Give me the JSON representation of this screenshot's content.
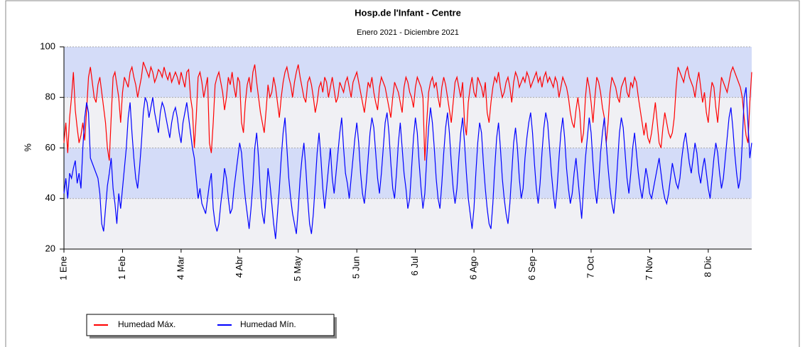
{
  "chart_data": {
    "type": "line",
    "title": "Hosp.de l'Infant - Centre",
    "subtitle": "Enero 2021 - Diciembre 2021",
    "y_label": "%",
    "categories": [
      "1 Ene",
      null,
      null,
      null,
      null,
      null,
      null,
      null,
      null,
      null,
      null,
      null,
      null,
      null,
      null,
      null,
      null,
      null,
      null,
      null,
      null,
      null,
      null,
      null,
      null,
      null,
      null,
      null,
      null,
      null,
      null,
      "1 Feb",
      null,
      null,
      null,
      null,
      null,
      null,
      null,
      null,
      null,
      null,
      null,
      null,
      null,
      null,
      null,
      null,
      null,
      null,
      null,
      null,
      null,
      null,
      null,
      null,
      null,
      null,
      null,
      null,
      null,
      null,
      "4 Mar",
      null,
      null,
      null,
      null,
      null,
      null,
      null,
      null,
      null,
      null,
      null,
      null,
      null,
      null,
      null,
      null,
      null,
      null,
      null,
      null,
      null,
      null,
      null,
      null,
      null,
      null,
      null,
      null,
      null,
      null,
      "4 Abr",
      null,
      null,
      null,
      null,
      null,
      null,
      null,
      null,
      null,
      null,
      null,
      null,
      null,
      null,
      null,
      null,
      null,
      null,
      null,
      null,
      null,
      null,
      null,
      null,
      null,
      null,
      null,
      null,
      null,
      null,
      "5 May",
      null,
      null,
      null,
      null,
      null,
      null,
      null,
      null,
      null,
      null,
      null,
      null,
      null,
      null,
      null,
      null,
      null,
      null,
      null,
      null,
      null,
      null,
      null,
      null,
      null,
      null,
      null,
      null,
      null,
      null,
      "5 Jun",
      null,
      null,
      null,
      null,
      null,
      null,
      null,
      null,
      null,
      null,
      null,
      null,
      null,
      null,
      null,
      null,
      null,
      null,
      null,
      null,
      null,
      null,
      null,
      null,
      null,
      null,
      null,
      null,
      null,
      null,
      "6 Jul",
      null,
      null,
      null,
      null,
      null,
      null,
      null,
      null,
      null,
      null,
      null,
      null,
      null,
      null,
      null,
      null,
      null,
      null,
      null,
      null,
      null,
      null,
      null,
      null,
      null,
      null,
      null,
      null,
      null,
      null,
      "6 Ago",
      null,
      null,
      null,
      null,
      null,
      null,
      null,
      null,
      null,
      null,
      null,
      null,
      null,
      null,
      null,
      null,
      null,
      null,
      null,
      null,
      null,
      null,
      null,
      null,
      null,
      null,
      null,
      null,
      null,
      null,
      "6 Sep",
      null,
      null,
      null,
      null,
      null,
      null,
      null,
      null,
      null,
      null,
      null,
      null,
      null,
      null,
      null,
      null,
      null,
      null,
      null,
      null,
      null,
      null,
      null,
      null,
      null,
      null,
      null,
      null,
      null,
      null,
      "7 Oct",
      null,
      null,
      null,
      null,
      null,
      null,
      null,
      null,
      null,
      null,
      null,
      null,
      null,
      null,
      null,
      null,
      null,
      null,
      null,
      null,
      null,
      null,
      null,
      null,
      null,
      null,
      null,
      null,
      null,
      null,
      "7 Nov",
      null,
      null,
      null,
      null,
      null,
      null,
      null,
      null,
      null,
      null,
      null,
      null,
      null,
      null,
      null,
      null,
      null,
      null,
      null,
      null,
      null,
      null,
      null,
      null,
      null,
      null,
      null,
      null,
      null,
      null,
      "8 Dic",
      null,
      null,
      null,
      null,
      null,
      null,
      null,
      null,
      null,
      null,
      null,
      null,
      null,
      null,
      null,
      null,
      null,
      null,
      null,
      null,
      null,
      null,
      null
    ],
    "series": [
      {
        "name": "Humedad Máx.",
        "color": "#ff0000",
        "values": [
          62,
          70,
          58,
          72,
          80,
          90,
          75,
          68,
          62,
          65,
          70,
          63,
          75,
          88,
          92,
          86,
          80,
          78,
          85,
          88,
          82,
          76,
          70,
          60,
          55,
          72,
          88,
          90,
          85,
          80,
          70,
          82,
          88,
          86,
          84,
          90,
          92,
          88,
          85,
          80,
          84,
          88,
          94,
          92,
          90,
          88,
          92,
          90,
          86,
          88,
          91,
          90,
          88,
          92,
          89,
          87,
          90,
          86,
          88,
          90,
          88,
          85,
          90,
          87,
          84,
          90,
          91,
          80,
          75,
          60,
          72,
          88,
          90,
          86,
          80,
          84,
          88,
          62,
          58,
          70,
          85,
          88,
          90,
          86,
          82,
          75,
          80,
          88,
          85,
          90,
          84,
          80,
          88,
          86,
          70,
          66,
          78,
          85,
          88,
          82,
          90,
          93,
          86,
          80,
          74,
          70,
          66,
          75,
          85,
          80,
          82,
          88,
          84,
          78,
          72,
          80,
          86,
          90,
          92,
          88,
          85,
          80,
          86,
          90,
          93,
          88,
          84,
          80,
          78,
          86,
          88,
          85,
          80,
          74,
          78,
          84,
          86,
          82,
          88,
          86,
          80,
          84,
          88,
          83,
          78,
          80,
          86,
          84,
          82,
          86,
          88,
          84,
          80,
          86,
          88,
          90,
          86,
          82,
          78,
          74,
          80,
          86,
          84,
          88,
          82,
          78,
          75,
          84,
          88,
          86,
          84,
          80,
          76,
          72,
          80,
          86,
          84,
          82,
          78,
          74,
          84,
          88,
          86,
          82,
          80,
          76,
          84,
          88,
          86,
          84,
          80,
          55,
          70,
          82,
          86,
          88,
          84,
          86,
          80,
          76,
          84,
          88,
          85,
          80,
          75,
          70,
          78,
          86,
          88,
          84,
          80,
          86,
          70,
          65,
          78,
          84,
          88,
          82,
          80,
          88,
          86,
          84,
          80,
          86,
          74,
          70,
          78,
          84,
          88,
          86,
          90,
          84,
          80,
          82,
          86,
          88,
          84,
          78,
          86,
          90,
          88,
          84,
          86,
          88,
          86,
          90,
          88,
          84,
          86,
          88,
          90,
          86,
          88,
          84,
          88,
          90,
          86,
          88,
          86,
          84,
          88,
          86,
          80,
          84,
          88,
          86,
          84,
          80,
          74,
          70,
          68,
          75,
          80,
          74,
          62,
          66,
          80,
          88,
          84,
          78,
          70,
          80,
          88,
          86,
          82,
          76,
          72,
          62,
          70,
          82,
          88,
          86,
          84,
          80,
          78,
          84,
          86,
          88,
          82,
          80,
          86,
          84,
          88,
          86,
          80,
          75,
          70,
          65,
          70,
          64,
          62,
          66,
          72,
          78,
          70,
          62,
          60,
          68,
          74,
          70,
          66,
          64,
          66,
          72,
          84,
          92,
          90,
          88,
          86,
          90,
          92,
          88,
          86,
          84,
          80,
          86,
          90,
          84,
          78,
          82,
          74,
          70,
          80,
          86,
          84,
          76,
          70,
          80,
          88,
          86,
          84,
          82,
          86,
          90,
          92,
          90,
          88,
          86,
          84,
          80,
          72,
          65,
          62,
          78,
          90
        ]
      },
      {
        "name": "Humedad Mín.",
        "color": "#0000ff",
        "values": [
          42,
          48,
          40,
          50,
          48,
          52,
          55,
          46,
          50,
          44,
          60,
          72,
          78,
          74,
          56,
          54,
          52,
          50,
          48,
          42,
          30,
          27,
          36,
          45,
          50,
          56,
          44,
          38,
          30,
          42,
          36,
          44,
          52,
          60,
          72,
          78,
          66,
          56,
          48,
          44,
          52,
          62,
          74,
          80,
          78,
          72,
          76,
          80,
          74,
          70,
          66,
          74,
          78,
          76,
          72,
          68,
          64,
          70,
          74,
          76,
          72,
          66,
          62,
          70,
          74,
          78,
          72,
          66,
          60,
          56,
          48,
          40,
          44,
          38,
          36,
          34,
          40,
          46,
          50,
          36,
          30,
          27,
          30,
          38,
          44,
          52,
          48,
          40,
          34,
          36,
          44,
          50,
          56,
          62,
          58,
          48,
          40,
          34,
          28,
          36,
          46,
          60,
          66,
          56,
          42,
          34,
          30,
          40,
          52,
          46,
          38,
          30,
          24,
          34,
          44,
          56,
          66,
          72,
          60,
          48,
          40,
          34,
          30,
          26,
          36,
          48,
          56,
          62,
          52,
          40,
          30,
          26,
          34,
          46,
          58,
          66,
          56,
          44,
          36,
          44,
          52,
          60,
          48,
          42,
          50,
          58,
          66,
          72,
          60,
          50,
          46,
          40,
          48,
          56,
          64,
          70,
          62,
          50,
          42,
          38,
          46,
          56,
          66,
          72,
          68,
          58,
          48,
          42,
          50,
          60,
          70,
          74,
          66,
          54,
          44,
          40,
          50,
          62,
          70,
          60,
          50,
          44,
          36,
          40,
          52,
          64,
          72,
          66,
          54,
          44,
          36,
          42,
          56,
          68,
          76,
          70,
          60,
          48,
          40,
          36,
          46,
          58,
          68,
          74,
          66,
          54,
          44,
          38,
          44,
          56,
          66,
          72,
          62,
          50,
          40,
          34,
          28,
          36,
          50,
          62,
          70,
          66,
          54,
          44,
          36,
          30,
          28,
          38,
          52,
          64,
          70,
          60,
          48,
          40,
          34,
          30,
          38,
          50,
          62,
          68,
          60,
          48,
          40,
          44,
          56,
          64,
          70,
          74,
          66,
          54,
          44,
          38,
          46,
          58,
          68,
          74,
          70,
          60,
          50,
          42,
          36,
          44,
          56,
          66,
          72,
          64,
          52,
          44,
          38,
          42,
          50,
          56,
          48,
          40,
          32,
          44,
          56,
          64,
          72,
          66,
          54,
          44,
          38,
          46,
          58,
          66,
          72,
          62,
          52,
          44,
          38,
          34,
          42,
          54,
          66,
          72,
          68,
          58,
          48,
          42,
          50,
          60,
          66,
          58,
          50,
          44,
          40,
          46,
          52,
          48,
          42,
          40,
          44,
          48,
          52,
          56,
          50,
          44,
          40,
          38,
          42,
          48,
          54,
          50,
          46,
          44,
          48,
          56,
          62,
          66,
          60,
          54,
          50,
          56,
          62,
          58,
          50,
          46,
          52,
          56,
          50,
          44,
          40,
          48,
          56,
          62,
          58,
          50,
          44,
          48,
          56,
          64,
          72,
          76,
          68,
          58,
          50,
          44,
          48,
          62,
          80,
          84,
          70,
          56,
          62
        ]
      }
    ],
    "ylim": [
      20,
      100
    ],
    "yticks": [
      20,
      40,
      60,
      80,
      100
    ],
    "grid": true
  }
}
